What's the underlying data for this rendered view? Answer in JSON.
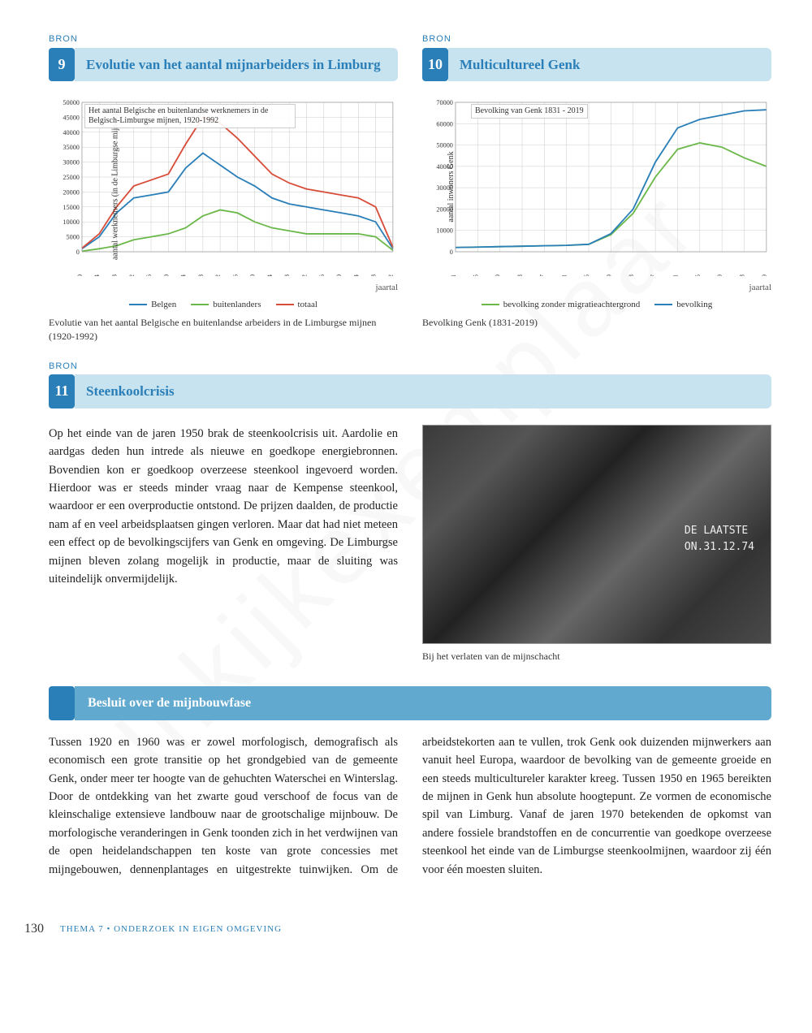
{
  "watermark": "Inkijkexemplaar",
  "bron9": {
    "label": "BRON",
    "number": "9",
    "title": "Evolutie van het aantal mijnarbeiders in Limburg",
    "chart": {
      "type": "line",
      "inner_title": "Het aantal Belgische en buitenlandse werknemers in de Belgisch-Limburgse mijnen, 1920-1992",
      "y_axis_label": "aantal werknemers (in de Limburgse mijnen)",
      "x_axis_label": "jaartal",
      "ylim": [
        0,
        50000
      ],
      "ytick_step": 5000,
      "yticks": [
        "0",
        "5000",
        "10000",
        "15000",
        "20000",
        "25000",
        "30000",
        "35000",
        "40000",
        "45000",
        "50000"
      ],
      "xticks": [
        "1920",
        "1924",
        "1928",
        "1932",
        "1936",
        "1940",
        "1944",
        "1948",
        "1952",
        "1956",
        "1960",
        "1964",
        "1968",
        "1972",
        "1976",
        "1980",
        "1984",
        "1988",
        "1992"
      ],
      "series": [
        {
          "name": "Belgen",
          "color": "#2a7fb8",
          "values": [
            1000,
            5000,
            13000,
            18000,
            19000,
            20000,
            28000,
            33000,
            29000,
            25000,
            22000,
            18000,
            16000,
            15000,
            14000,
            13000,
            12000,
            10000,
            1000
          ]
        },
        {
          "name": "buitenlanders",
          "color": "#6bb84a",
          "values": [
            200,
            1000,
            2000,
            4000,
            5000,
            6000,
            8000,
            12000,
            14000,
            13000,
            10000,
            8000,
            7000,
            6000,
            6000,
            6000,
            6000,
            5000,
            500
          ]
        },
        {
          "name": "totaal",
          "color": "#d84d3a",
          "values": [
            1200,
            6000,
            15000,
            22000,
            24000,
            26000,
            36000,
            45000,
            43000,
            38000,
            32000,
            26000,
            23000,
            21000,
            20000,
            19000,
            18000,
            15000,
            1500
          ]
        }
      ],
      "legend": [
        {
          "label": "Belgen",
          "color": "#2a7fb8"
        },
        {
          "label": "buitenlanders",
          "color": "#6bb84a"
        },
        {
          "label": "totaal",
          "color": "#d84d3a"
        }
      ],
      "grid_color": "#cccccc",
      "background": "#ffffff"
    },
    "caption": "Evolutie van het aantal Belgische en buitenlandse arbeiders in de Limburgse mijnen (1920-1992)"
  },
  "bron10": {
    "label": "BRON",
    "number": "10",
    "title": "Multicultureel Genk",
    "chart": {
      "type": "line",
      "inner_title": "Bevolking van Genk 1831 - 2019",
      "y_axis_label": "aantal inwoners Genk",
      "x_axis_label": "jaartal",
      "ylim": [
        0,
        70000
      ],
      "ytick_step": 10000,
      "yticks": [
        "0",
        "10000",
        "20000",
        "30000",
        "40000",
        "50000",
        "60000",
        "70000"
      ],
      "xticks": [
        "1831",
        "1845",
        "1859",
        "1873",
        "1887",
        "1901",
        "1915",
        "1929",
        "1943",
        "1957",
        "1971",
        "1985",
        "1999",
        "2013",
        "2019"
      ],
      "series": [
        {
          "name": "bevolking zonder migratieachtergrond",
          "color": "#6bb84a",
          "values": [
            2000,
            2200,
            2400,
            2600,
            2800,
            3000,
            3500,
            8000,
            18000,
            35000,
            48000,
            51000,
            49000,
            44000,
            40000
          ]
        },
        {
          "name": "bevolking",
          "color": "#2a7fb8",
          "values": [
            2000,
            2200,
            2400,
            2600,
            2800,
            3000,
            3500,
            8500,
            20000,
            42000,
            58000,
            62000,
            64000,
            66000,
            66500
          ]
        }
      ],
      "legend": [
        {
          "label": "bevolking zonder migratieachtergrond",
          "color": "#6bb84a"
        },
        {
          "label": "bevolking",
          "color": "#2a7fb8"
        }
      ],
      "grid_color": "#cccccc",
      "background": "#ffffff"
    },
    "caption": "Bevolking Genk (1831-2019)"
  },
  "bron11": {
    "label": "BRON",
    "number": "11",
    "title": "Steenkoolcrisis",
    "body": "Op het einde van de jaren 1950 brak de steenkoolcrisis uit. Aardolie en aardgas deden hun intrede als nieuwe en goedkope energiebronnen. Bovendien kon er goedkoop overzeese steenkool ingevoerd worden. Hierdoor was er steeds minder vraag naar de Kempense steenkool, waardoor er een overproductie ontstond. De prijzen daalden, de productie nam af en veel arbeidsplaatsen gingen verloren. Maar dat had niet meteen een effect op de bevolkingscijfers van Genk en omgeving. De Limburgse mijnen bleven zolang mogelijk in productie, maar de sluiting was uiteindelijk onvermijdelijk.",
    "photo_text1": "DE LAATSTE",
    "photo_text2": "ON.31.12.74",
    "photo_caption": "Bij het verlaten van de mijnschacht"
  },
  "conclusion": {
    "title": "Besluit over de mijnbouwfase",
    "body": "Tussen 1920 en 1960 was er zowel morfologisch, demografisch als economisch een grote transitie op het grondgebied van de gemeente Genk, onder meer ter hoogte van de gehuchten Waterschei en Winterslag. Door de ontdekking van het zwarte goud verschoof de focus van de kleinschalige extensieve landbouw naar de grootschalige mijnbouw.\nDe morfologische veranderingen in Genk toonden zich in het verdwijnen van de open heidelandschappen ten koste van grote concessies met mijngebouwen, dennenplantages en uitgestrekte tuinwijken. Om de arbeidstekorten aan te vullen, trok Genk ook duizenden mijnwerkers aan vanuit heel Europa, waardoor de bevolking van de gemeente groeide en een steeds multicultureler karakter kreeg. Tussen 1950 en 1965 bereikten de mijnen in Genk hun absolute hoogtepunt. Ze vormen de economische spil van Limburg. Vanaf de jaren 1970 betekenden de opkomst van andere fossiele brandstoffen en de concurrentie van goedkope overzeese steenkool het einde van de Limburgse steenkoolmijnen, waardoor zij één voor één moesten sluiten."
  },
  "footer": {
    "page_number": "130",
    "text": "THEMA 7 • ONDERZOEK IN EIGEN OMGEVING"
  }
}
